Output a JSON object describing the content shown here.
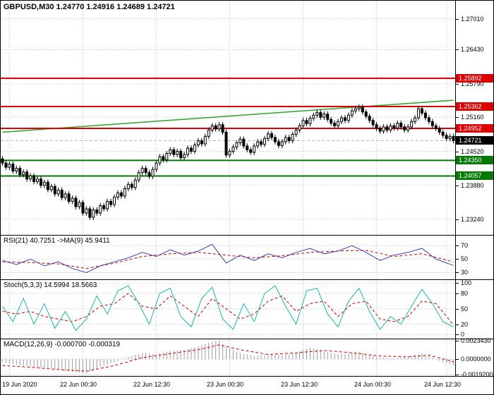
{
  "title": "GBPUSD,M30 1.24770 1.24916 1.24689 1.24721",
  "chart_data": {
    "type": "candlestick",
    "symbol": "GBPUSD",
    "timeframe": "M30",
    "ohlc_display": {
      "open": "1.24770",
      "high": "1.24916",
      "low": "1.24689",
      "close": "1.24721"
    },
    "colors": {
      "grid": "#c8c8c8",
      "bull": "#ffffff",
      "bear": "#000000",
      "outline": "#000000",
      "resistance": "#dd0000",
      "support": "#007a00",
      "trend": "#2aa52a",
      "rsi": "#4040a0",
      "stoch": "#20b2aa",
      "signal": "#cc0000",
      "macd_hist": "#9a9a9a",
      "current": "#000000"
    },
    "price_panel": {
      "domain": [
        1.2295,
        1.2735
      ],
      "y_ticks": [
        1.2701,
        1.2643,
        1.2579,
        1.2516,
        1.2452,
        1.2388,
        1.2324
      ],
      "first_open": 1.2438,
      "wick": 0.0005,
      "closes": [
        1.243,
        1.2422,
        1.2428,
        1.2415,
        1.242,
        1.2408,
        1.2413,
        1.24,
        1.2406,
        1.2395,
        1.24,
        1.2388,
        1.2394,
        1.238,
        1.2386,
        1.2372,
        1.2379,
        1.2365,
        1.2372,
        1.2358,
        1.2364,
        1.2348,
        1.2356,
        1.2336,
        1.2344,
        1.2328,
        1.2342,
        1.2336,
        1.235,
        1.2344,
        1.2358,
        1.2352,
        1.2366,
        1.2374,
        1.2368,
        1.2382,
        1.239,
        1.2384,
        1.2398,
        1.2412,
        1.242,
        1.2412,
        1.2405,
        1.2418,
        1.243,
        1.2442,
        1.2436,
        1.2448,
        1.2455,
        1.2446,
        1.2452,
        1.244,
        1.2446,
        1.2458,
        1.2452,
        1.2464,
        1.2472,
        1.2466,
        1.248,
        1.2492,
        1.25,
        1.2494,
        1.2502,
        1.2488,
        1.2445,
        1.2452,
        1.246,
        1.2468,
        1.2475,
        1.2462,
        1.2455,
        1.245,
        1.2462,
        1.247,
        1.2465,
        1.2476,
        1.2485,
        1.2478,
        1.247,
        1.2463,
        1.247,
        1.2478,
        1.2472,
        1.2484,
        1.2492,
        1.25,
        1.251,
        1.2504,
        1.2514,
        1.252,
        1.2525,
        1.2516,
        1.2522,
        1.2512,
        1.2505,
        1.25,
        1.2508,
        1.2515,
        1.251,
        1.252,
        1.2528,
        1.2532,
        1.2535,
        1.2526,
        1.2518,
        1.251,
        1.2502,
        1.2495,
        1.249,
        1.2498,
        1.2492,
        1.25,
        1.2496,
        1.2505,
        1.2498,
        1.2492,
        1.2498,
        1.2508,
        1.2515,
        1.2532,
        1.2524,
        1.2515,
        1.2508,
        1.25,
        1.2495,
        1.2488,
        1.2482,
        1.2476,
        1.248,
        1.24721
      ],
      "hlines": [
        {
          "price": 1.25892,
          "color": "#dd0000",
          "kind": "resistance"
        },
        {
          "price": 1.25362,
          "color": "#dd0000",
          "kind": "resistance"
        },
        {
          "price": 1.24952,
          "color": "#dd0000",
          "kind": "resistance"
        },
        {
          "price": 1.2435,
          "color": "#007a00",
          "kind": "support"
        },
        {
          "price": 1.24057,
          "color": "#007a00",
          "kind": "support"
        }
      ],
      "current_price": 1.24721,
      "trendline": {
        "from": [
          0,
          1.2488
        ],
        "to": [
          129,
          1.2548
        ]
      }
    },
    "x_ticks": [
      {
        "label": "19 Jun 2020",
        "bar": 2
      },
      {
        "label": "22 Jun 00:30",
        "bar": 23
      },
      {
        "label": "22 Jun 12:30",
        "bar": 44
      },
      {
        "label": "23 Jun 00:30",
        "bar": 65
      },
      {
        "label": "23 Jun 12:30",
        "bar": 86
      },
      {
        "label": "24 Jun 00:30",
        "bar": 107
      },
      {
        "label": "24 Jun 12:30",
        "bar": 127
      }
    ],
    "rsi": {
      "label": "RSI(21) 40.7251 ->MA(9) 45.9411",
      "domain": [
        20,
        85
      ],
      "ticks": [
        70,
        50,
        30
      ],
      "main": [
        [
          0,
          48
        ],
        [
          4,
          42
        ],
        [
          8,
          50
        ],
        [
          12,
          40
        ],
        [
          16,
          46
        ],
        [
          20,
          36
        ],
        [
          24,
          30
        ],
        [
          28,
          40
        ],
        [
          32,
          46
        ],
        [
          36,
          52
        ],
        [
          40,
          60
        ],
        [
          44,
          54
        ],
        [
          48,
          64
        ],
        [
          52,
          56
        ],
        [
          56,
          62
        ],
        [
          60,
          72
        ],
        [
          64,
          44
        ],
        [
          68,
          56
        ],
        [
          72,
          48
        ],
        [
          76,
          58
        ],
        [
          80,
          52
        ],
        [
          84,
          60
        ],
        [
          88,
          66
        ],
        [
          92,
          58
        ],
        [
          96,
          62
        ],
        [
          100,
          70
        ],
        [
          104,
          60
        ],
        [
          108,
          48
        ],
        [
          112,
          56
        ],
        [
          116,
          60
        ],
        [
          120,
          66
        ],
        [
          124,
          50
        ],
        [
          129,
          40.7
        ]
      ],
      "ma": [
        [
          0,
          46
        ],
        [
          8,
          45
        ],
        [
          16,
          43
        ],
        [
          24,
          36
        ],
        [
          32,
          44
        ],
        [
          40,
          54
        ],
        [
          48,
          58
        ],
        [
          56,
          60
        ],
        [
          64,
          56
        ],
        [
          72,
          52
        ],
        [
          80,
          55
        ],
        [
          88,
          60
        ],
        [
          96,
          62
        ],
        [
          104,
          63
        ],
        [
          112,
          54
        ],
        [
          120,
          58
        ],
        [
          129,
          45.9
        ]
      ]
    },
    "stoch": {
      "label": "Stoch(5,3,3) 14.5994 18.5663",
      "domain": [
        -8,
        106
      ],
      "ticks": [
        100,
        80,
        50,
        20,
        0
      ],
      "main": [
        [
          0,
          55
        ],
        [
          3,
          25
        ],
        [
          6,
          70
        ],
        [
          9,
          20
        ],
        [
          12,
          60
        ],
        [
          15,
          12
        ],
        [
          18,
          45
        ],
        [
          21,
          8
        ],
        [
          24,
          30
        ],
        [
          27,
          75
        ],
        [
          30,
          40
        ],
        [
          33,
          85
        ],
        [
          36,
          95
        ],
        [
          39,
          60
        ],
        [
          42,
          20
        ],
        [
          45,
          80
        ],
        [
          48,
          90
        ],
        [
          51,
          35
        ],
        [
          54,
          15
        ],
        [
          57,
          70
        ],
        [
          60,
          92
        ],
        [
          63,
          30
        ],
        [
          66,
          10
        ],
        [
          69,
          60
        ],
        [
          72,
          25
        ],
        [
          75,
          80
        ],
        [
          78,
          95
        ],
        [
          81,
          55
        ],
        [
          84,
          20
        ],
        [
          87,
          85
        ],
        [
          90,
          90
        ],
        [
          93,
          40
        ],
        [
          96,
          15
        ],
        [
          99,
          65
        ],
        [
          102,
          90
        ],
        [
          105,
          45
        ],
        [
          108,
          10
        ],
        [
          111,
          35
        ],
        [
          114,
          20
        ],
        [
          117,
          55
        ],
        [
          120,
          88
        ],
        [
          123,
          60
        ],
        [
          126,
          25
        ],
        [
          129,
          14.6
        ]
      ],
      "signal": [
        [
          0,
          45
        ],
        [
          4,
          40
        ],
        [
          8,
          45
        ],
        [
          12,
          35
        ],
        [
          16,
          30
        ],
        [
          20,
          25
        ],
        [
          24,
          35
        ],
        [
          28,
          55
        ],
        [
          32,
          60
        ],
        [
          36,
          80
        ],
        [
          40,
          55
        ],
        [
          44,
          50
        ],
        [
          48,
          75
        ],
        [
          52,
          55
        ],
        [
          56,
          35
        ],
        [
          60,
          70
        ],
        [
          64,
          50
        ],
        [
          68,
          30
        ],
        [
          72,
          40
        ],
        [
          76,
          65
        ],
        [
          80,
          75
        ],
        [
          84,
          45
        ],
        [
          88,
          60
        ],
        [
          92,
          65
        ],
        [
          96,
          35
        ],
        [
          100,
          60
        ],
        [
          104,
          65
        ],
        [
          108,
          30
        ],
        [
          112,
          25
        ],
        [
          116,
          35
        ],
        [
          120,
          65
        ],
        [
          124,
          60
        ],
        [
          129,
          18.6
        ]
      ]
    },
    "macd": {
      "label": "MACD(12,26,9) -0.000700 -0.000319",
      "domain": [
        -0.0021,
        0.0025
      ],
      "ticks": [
        0.002343,
        0,
        -0.00192
      ],
      "decimals": 7,
      "hist": [
        [
          0,
          -0.0004
        ],
        [
          4,
          -0.0007
        ],
        [
          8,
          -0.0009
        ],
        [
          12,
          -0.0011
        ],
        [
          16,
          -0.0013
        ],
        [
          20,
          -0.0016
        ],
        [
          24,
          -0.0018
        ],
        [
          28,
          -0.001
        ],
        [
          32,
          -0.0004
        ],
        [
          36,
          0.0003
        ],
        [
          40,
          0.0008
        ],
        [
          44,
          0.0006
        ],
        [
          48,
          0.001
        ],
        [
          52,
          0.0012
        ],
        [
          56,
          0.0016
        ],
        [
          60,
          0.0022
        ],
        [
          62,
          0.0023
        ],
        [
          64,
          0.0015
        ],
        [
          68,
          0.0008
        ],
        [
          72,
          0.0004
        ],
        [
          76,
          0.0006
        ],
        [
          80,
          0.0005
        ],
        [
          84,
          0.0008
        ],
        [
          86,
          0.0012
        ],
        [
          88,
          0.0014
        ],
        [
          90,
          0.0013
        ],
        [
          92,
          0.001
        ],
        [
          96,
          0.0006
        ],
        [
          100,
          0.0008
        ],
        [
          102,
          0.0009
        ],
        [
          104,
          0.0006
        ],
        [
          108,
          0.0002
        ],
        [
          112,
          0.0001
        ],
        [
          116,
          0.0003
        ],
        [
          118,
          0.0006
        ],
        [
          120,
          0.0007
        ],
        [
          122,
          0.0004
        ],
        [
          124,
          0.0
        ],
        [
          126,
          -0.0004
        ],
        [
          128,
          -0.0006
        ],
        [
          129,
          -0.0007
        ]
      ],
      "signal": [
        [
          0,
          -0.0008
        ],
        [
          8,
          -0.001
        ],
        [
          16,
          -0.0013
        ],
        [
          24,
          -0.0015
        ],
        [
          32,
          -0.0008
        ],
        [
          40,
          0.0002
        ],
        [
          48,
          0.0007
        ],
        [
          56,
          0.0012
        ],
        [
          62,
          0.0018
        ],
        [
          68,
          0.0012
        ],
        [
          76,
          0.0006
        ],
        [
          84,
          0.0008
        ],
        [
          92,
          0.0011
        ],
        [
          100,
          0.0008
        ],
        [
          108,
          0.0004
        ],
        [
          116,
          0.0003
        ],
        [
          122,
          0.0005
        ],
        [
          129,
          -0.00032
        ]
      ]
    }
  }
}
